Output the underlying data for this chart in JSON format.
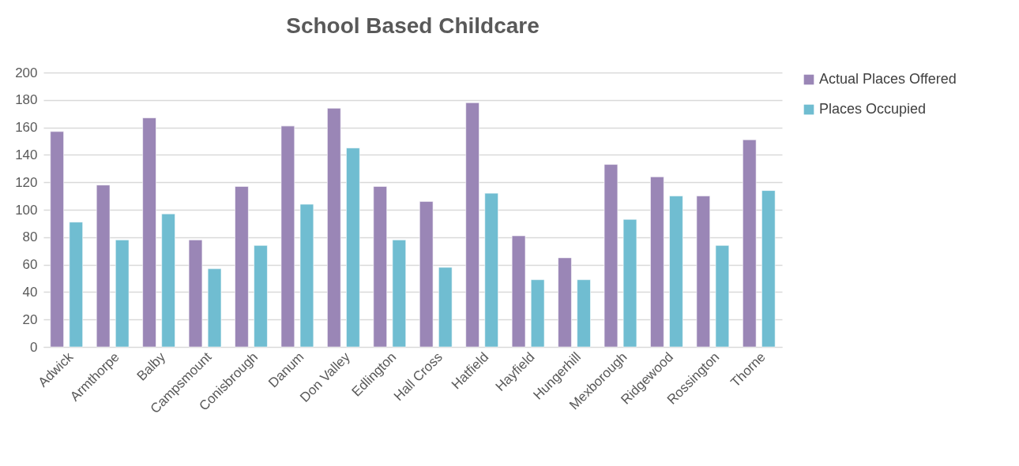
{
  "chart_data": {
    "type": "bar",
    "title": "School Based Childcare",
    "categories": [
      "Adwick",
      "Armthorpe",
      "Balby",
      "Campsmount",
      "Conisbrough",
      "Danum",
      "Don Valley",
      "Edlington",
      "Hall Cross",
      "Hatfield",
      "Hayfield",
      "Hungerhill",
      "Mexborough",
      "Ridgewood",
      "Rossington",
      "Thorne"
    ],
    "series": [
      {
        "name": "Actual Places Offered",
        "color": "#9a86b6",
        "values": [
          157,
          118,
          167,
          78,
          117,
          161,
          174,
          117,
          106,
          178,
          81,
          65,
          133,
          124,
          110,
          151
        ]
      },
      {
        "name": "Places Occupied",
        "color": "#70bdd1",
        "values": [
          91,
          78,
          97,
          57,
          74,
          104,
          145,
          78,
          58,
          112,
          49,
          49,
          93,
          110,
          74,
          114
        ]
      }
    ],
    "ylim": [
      0,
      200
    ],
    "yticks": [
      0,
      20,
      40,
      60,
      80,
      100,
      120,
      140,
      160,
      180,
      200
    ],
    "grid": "y",
    "legend": "right"
  }
}
